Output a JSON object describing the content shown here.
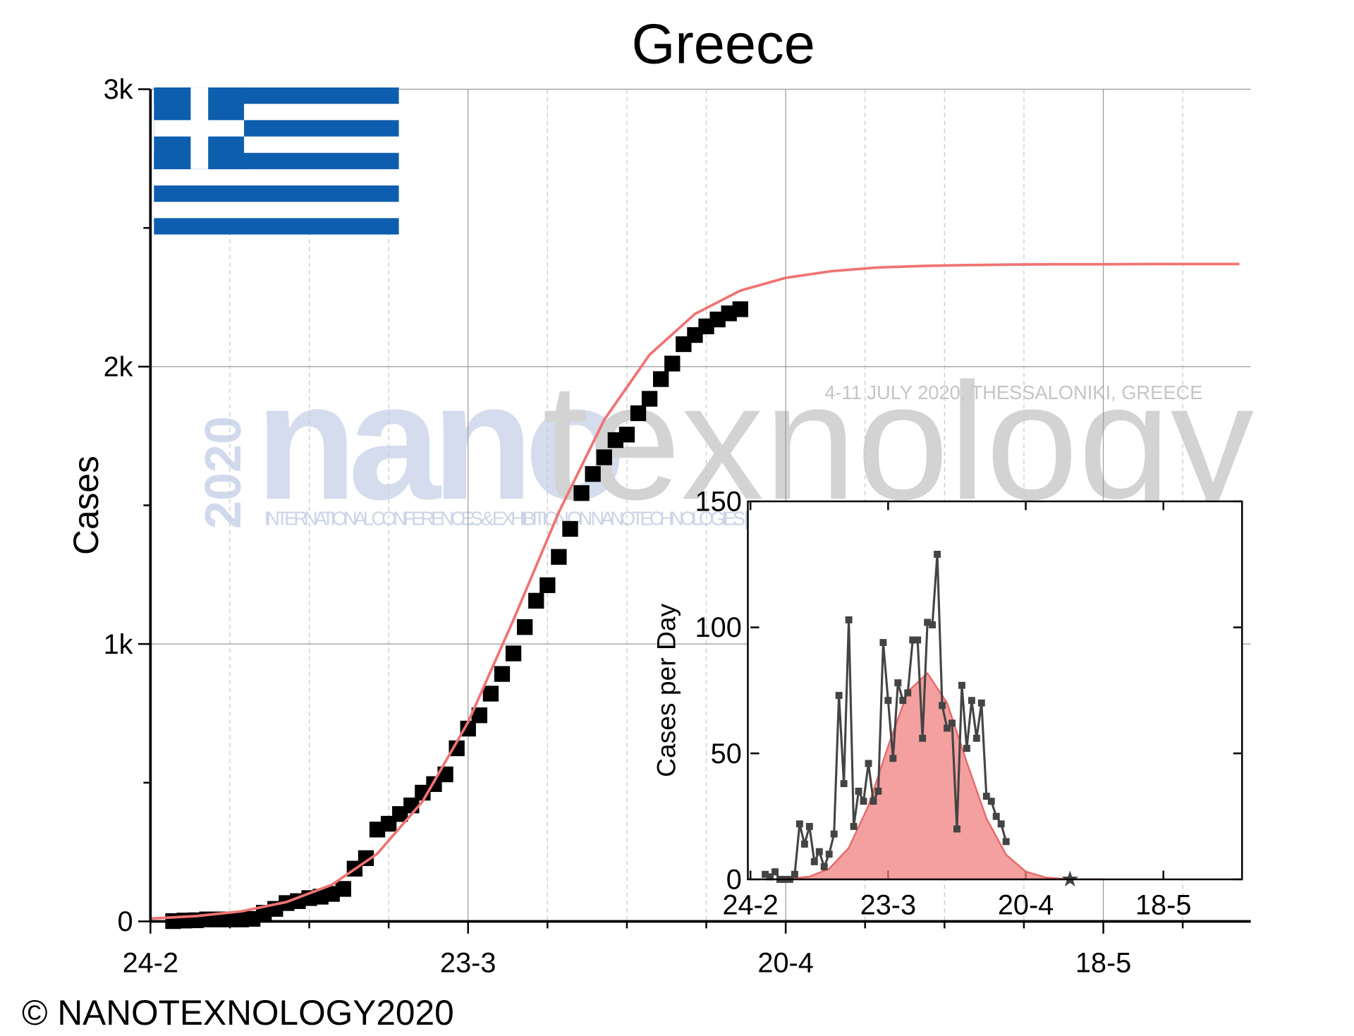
{
  "title": "Greece",
  "copyright": "© NANOTEXNOLOGY2020",
  "watermark": {
    "year": "2020",
    "nano": "nano",
    "texnology": "texnology",
    "dates": "4-11 JULY 2020, THESSALONIKI, GREECE",
    "subtitle": "INTERNATIONAL CONFERENCES & EXHIBITION ON NANOTECHNOLOGIES | ORGANIC ELECTRONICS & NANOMEDICINE"
  },
  "chart_data": [
    {
      "type": "line",
      "y_label": "Cases",
      "xlim": [
        0,
        97
      ],
      "ylim": [
        0,
        3000
      ],
      "xticks": [
        {
          "value": 0,
          "label": "24-2"
        },
        {
          "value": 28,
          "label": "23-3"
        },
        {
          "value": 56,
          "label": "20-4"
        },
        {
          "value": 84,
          "label": "18-5"
        }
      ],
      "xminorticks": [
        7,
        14,
        21,
        35,
        42,
        49,
        63,
        70,
        77,
        91
      ],
      "yticks": [
        0,
        {
          "value": 1000,
          "label": "1k"
        },
        {
          "value": 2000,
          "label": "2k"
        },
        {
          "value": 3000,
          "label": "3k"
        }
      ],
      "yminorticks": [
        500,
        1500,
        2500
      ],
      "grid": true,
      "series": [
        {
          "style": "markers",
          "color": "#000000",
          "x": [
            2,
            3,
            4,
            5,
            6,
            7,
            8,
            9,
            10,
            11,
            12,
            13,
            14,
            15,
            16,
            17,
            18,
            19,
            20,
            21,
            22,
            23,
            24,
            25,
            26,
            27,
            28,
            29,
            30,
            31,
            32,
            33,
            34,
            35,
            36,
            37,
            38,
            39,
            40,
            41,
            42,
            43,
            44,
            45,
            46,
            47,
            48,
            49,
            50,
            51,
            52
          ],
          "values": [
            1,
            3,
            4,
            7,
            7,
            7,
            7,
            9,
            31,
            45,
            66,
            73,
            84,
            89,
            99,
            117,
            190,
            228,
            331,
            352,
            387,
            418,
            464,
            495,
            530,
            624,
            695,
            743,
            821,
            892,
            966,
            1061,
            1156,
            1212,
            1314,
            1415,
            1544,
            1613,
            1673,
            1735,
            1755,
            1832,
            1884,
            1955,
            2011,
            2081,
            2114,
            2145,
            2170,
            2192,
            2207
          ]
        },
        {
          "style": "line",
          "color": "#f07373",
          "x": [
            0,
            4,
            8,
            12,
            16,
            20,
            24,
            28,
            32,
            36,
            40,
            44,
            48,
            52,
            56,
            60,
            64,
            68,
            72,
            76,
            80,
            84,
            88,
            92,
            96
          ],
          "values": [
            10,
            19,
            36,
            70,
            132,
            244,
            433,
            718,
            1087,
            1475,
            1808,
            2043,
            2190,
            2274,
            2320,
            2344,
            2357,
            2363,
            2366,
            2368,
            2369,
            2369,
            2370,
            2370,
            2370
          ]
        }
      ]
    },
    {
      "type": "line",
      "y_label": "Cases per Day",
      "xlim": [
        0,
        100
      ],
      "ylim": [
        0,
        150
      ],
      "xticks": [
        {
          "value": 0,
          "label": "24-2"
        },
        {
          "value": 28,
          "label": "23-3"
        },
        {
          "value": 56,
          "label": "20-4"
        },
        {
          "value": 84,
          "label": "18-5"
        }
      ],
      "yticks": [
        0,
        50,
        100,
        150
      ],
      "series": [
        {
          "style": "area",
          "color": "#f08080",
          "x": [
            0,
            4,
            8,
            12,
            16,
            20,
            24,
            28,
            32,
            36,
            40,
            44,
            48,
            52,
            56,
            60,
            64,
            68,
            72
          ],
          "values": [
            0,
            0,
            0.2,
            1.1,
            4.2,
            12.5,
            29.2,
            52.8,
            74.5,
            81.8,
            70,
            46.5,
            24.2,
            9.8,
            3.1,
            0.75,
            0.14,
            0,
            0
          ]
        },
        {
          "style": "markers-line",
          "color": "#444444",
          "x": [
            3,
            4,
            5,
            6,
            7,
            8,
            9,
            10,
            11,
            12,
            13,
            14,
            15,
            16,
            17,
            18,
            19,
            20,
            21,
            22,
            23,
            24,
            25,
            26,
            27,
            28,
            29,
            30,
            31,
            32,
            33,
            34,
            35,
            36,
            37,
            38,
            39,
            40,
            41,
            42,
            43,
            44,
            45,
            46,
            47,
            48,
            49,
            50,
            51,
            52
          ],
          "values": [
            2,
            1,
            3,
            0,
            0,
            0,
            2,
            22,
            14,
            21,
            7,
            11,
            5,
            10,
            18,
            73,
            38,
            103,
            21,
            35,
            31,
            46,
            31,
            35,
            94,
            71,
            48,
            78,
            71,
            74,
            95,
            95,
            56,
            102,
            101,
            129,
            69,
            60,
            62,
            20,
            77,
            52,
            71,
            56,
            70,
            33,
            31,
            25,
            22,
            15
          ]
        },
        {
          "style": "star",
          "color": "#444444",
          "x": [
            65
          ],
          "values": [
            0
          ]
        }
      ]
    }
  ]
}
